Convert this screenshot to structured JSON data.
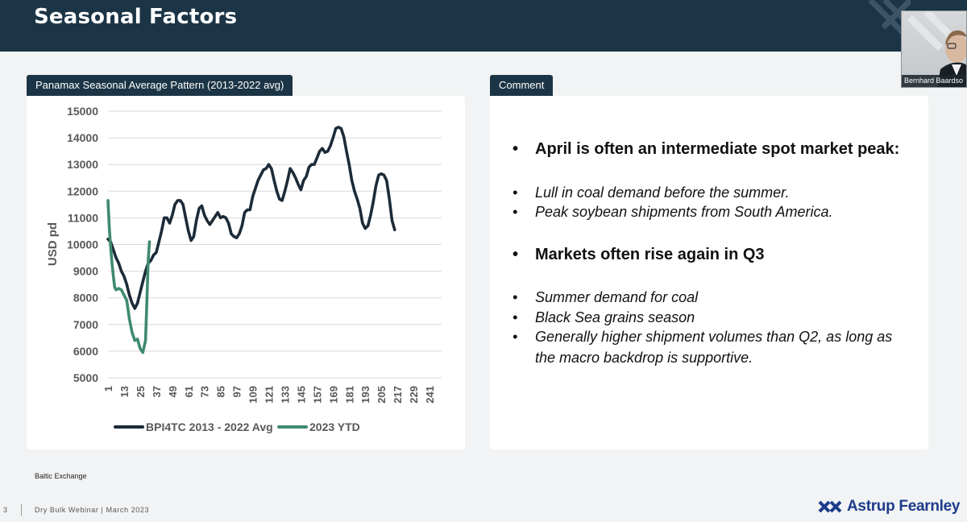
{
  "header": {
    "title": "Seasonal Factors"
  },
  "video": {
    "participant_name": "Bernhard Baardso"
  },
  "chart_panel": {
    "tab_label": "Panamax Seasonal Average Pattern (2013-2022 avg)"
  },
  "comment_panel": {
    "tab_label": "Comment",
    "bullets": [
      {
        "text": "April is often an intermediate spot market peak:",
        "style": "bold"
      },
      {
        "text": "Lull in coal demand before the summer.",
        "style": "italic"
      },
      {
        "text": "Peak soybean shipments from South America.",
        "style": "italic"
      },
      {
        "text": "Markets often rise again in Q3",
        "style": "bold"
      },
      {
        "text": "Summer demand for coal",
        "style": "italic"
      },
      {
        "text": "Black Sea grains season",
        "style": "italic"
      },
      {
        "text": "Generally higher shipment volumes than Q2, as long as",
        "style": "italic"
      },
      {
        "text": "the macro backdrop is supportive.",
        "style": "italic"
      }
    ],
    "bullet_symbol": "•"
  },
  "source": "Baltic Exchange",
  "footer": {
    "page_number": "3",
    "text": "Dry Bulk Webinar | March 2023"
  },
  "logo": {
    "text": "Astrup Fearnley"
  },
  "colors": {
    "navy": "#1c3546",
    "series1": "#1c2b38",
    "series2": "#3f8a6e",
    "logo_blue": "#1c3b8a"
  },
  "chart_data": {
    "type": "line",
    "title": "",
    "xlabel": "",
    "ylabel": "USD pd",
    "ylim": [
      5000,
      15000
    ],
    "yticks": [
      5000,
      6000,
      7000,
      8000,
      9000,
      10000,
      11000,
      12000,
      13000,
      14000,
      15000
    ],
    "xlim": [
      1,
      250
    ],
    "xticks": [
      1,
      13,
      25,
      37,
      49,
      61,
      73,
      85,
      97,
      109,
      121,
      133,
      145,
      157,
      169,
      181,
      193,
      205,
      217,
      229,
      241
    ],
    "grid": true,
    "legend": "bottom",
    "series": [
      {
        "name": "BPI4TC 2013 - 2022 Avg",
        "color": "#1c2b38",
        "points": [
          [
            1,
            10200
          ],
          [
            3,
            10100
          ],
          [
            5,
            9800
          ],
          [
            7,
            9500
          ],
          [
            9,
            9300
          ],
          [
            11,
            9000
          ],
          [
            13,
            8800
          ],
          [
            15,
            8500
          ],
          [
            17,
            8100
          ],
          [
            19,
            7800
          ],
          [
            21,
            7600
          ],
          [
            23,
            7800
          ],
          [
            25,
            8200
          ],
          [
            27,
            8600
          ],
          [
            29,
            9000
          ],
          [
            31,
            9300
          ],
          [
            33,
            9400
          ],
          [
            35,
            9600
          ],
          [
            37,
            9700
          ],
          [
            39,
            10100
          ],
          [
            41,
            10500
          ],
          [
            43,
            11000
          ],
          [
            45,
            11000
          ],
          [
            47,
            10800
          ],
          [
            49,
            11100
          ],
          [
            51,
            11500
          ],
          [
            53,
            11650
          ],
          [
            55,
            11650
          ],
          [
            57,
            11500
          ],
          [
            59,
            11000
          ],
          [
            61,
            10500
          ],
          [
            63,
            10150
          ],
          [
            65,
            10300
          ],
          [
            67,
            10900
          ],
          [
            69,
            11350
          ],
          [
            71,
            11450
          ],
          [
            73,
            11100
          ],
          [
            75,
            10900
          ],
          [
            77,
            10750
          ],
          [
            79,
            10900
          ],
          [
            81,
            11050
          ],
          [
            83,
            11200
          ],
          [
            85,
            11000
          ],
          [
            87,
            11050
          ],
          [
            89,
            11000
          ],
          [
            91,
            10800
          ],
          [
            93,
            10400
          ],
          [
            95,
            10300
          ],
          [
            97,
            10250
          ],
          [
            99,
            10400
          ],
          [
            101,
            10700
          ],
          [
            103,
            11200
          ],
          [
            105,
            11300
          ],
          [
            107,
            11300
          ],
          [
            109,
            11800
          ],
          [
            111,
            12100
          ],
          [
            113,
            12400
          ],
          [
            115,
            12600
          ],
          [
            117,
            12800
          ],
          [
            119,
            12850
          ],
          [
            121,
            13000
          ],
          [
            123,
            12850
          ],
          [
            125,
            12400
          ],
          [
            127,
            12000
          ],
          [
            129,
            11700
          ],
          [
            131,
            11650
          ],
          [
            133,
            12000
          ],
          [
            135,
            12400
          ],
          [
            137,
            12850
          ],
          [
            139,
            12700
          ],
          [
            141,
            12500
          ],
          [
            143,
            12250
          ],
          [
            145,
            12050
          ],
          [
            147,
            12400
          ],
          [
            149,
            12550
          ],
          [
            151,
            12900
          ],
          [
            153,
            13000
          ],
          [
            155,
            13000
          ],
          [
            157,
            13250
          ],
          [
            159,
            13500
          ],
          [
            161,
            13600
          ],
          [
            163,
            13450
          ],
          [
            165,
            13500
          ],
          [
            167,
            13700
          ],
          [
            169,
            14000
          ],
          [
            171,
            14350
          ],
          [
            173,
            14400
          ],
          [
            175,
            14350
          ],
          [
            177,
            14050
          ],
          [
            179,
            13500
          ],
          [
            181,
            13000
          ],
          [
            183,
            12400
          ],
          [
            185,
            12000
          ],
          [
            187,
            11700
          ],
          [
            189,
            11350
          ],
          [
            191,
            10800
          ],
          [
            193,
            10600
          ],
          [
            195,
            10700
          ],
          [
            197,
            11100
          ],
          [
            199,
            11600
          ],
          [
            201,
            12200
          ],
          [
            203,
            12600
          ],
          [
            205,
            12650
          ],
          [
            207,
            12600
          ],
          [
            209,
            12400
          ],
          [
            211,
            11700
          ],
          [
            213,
            10900
          ],
          [
            215,
            10550
          ]
        ]
      },
      {
        "name": "2023 YTD",
        "color": "#3f8a6e",
        "points": [
          [
            1,
            11650
          ],
          [
            2,
            10600
          ],
          [
            3,
            9900
          ],
          [
            4,
            9300
          ],
          [
            5,
            8800
          ],
          [
            6,
            8400
          ],
          [
            7,
            8300
          ],
          [
            9,
            8350
          ],
          [
            11,
            8300
          ],
          [
            13,
            8100
          ],
          [
            15,
            7900
          ],
          [
            17,
            7200
          ],
          [
            19,
            6700
          ],
          [
            21,
            6400
          ],
          [
            23,
            6450
          ],
          [
            25,
            6100
          ],
          [
            27,
            5950
          ],
          [
            29,
            6400
          ],
          [
            30,
            7800
          ],
          [
            31,
            9400
          ],
          [
            32,
            10100
          ]
        ]
      }
    ]
  }
}
